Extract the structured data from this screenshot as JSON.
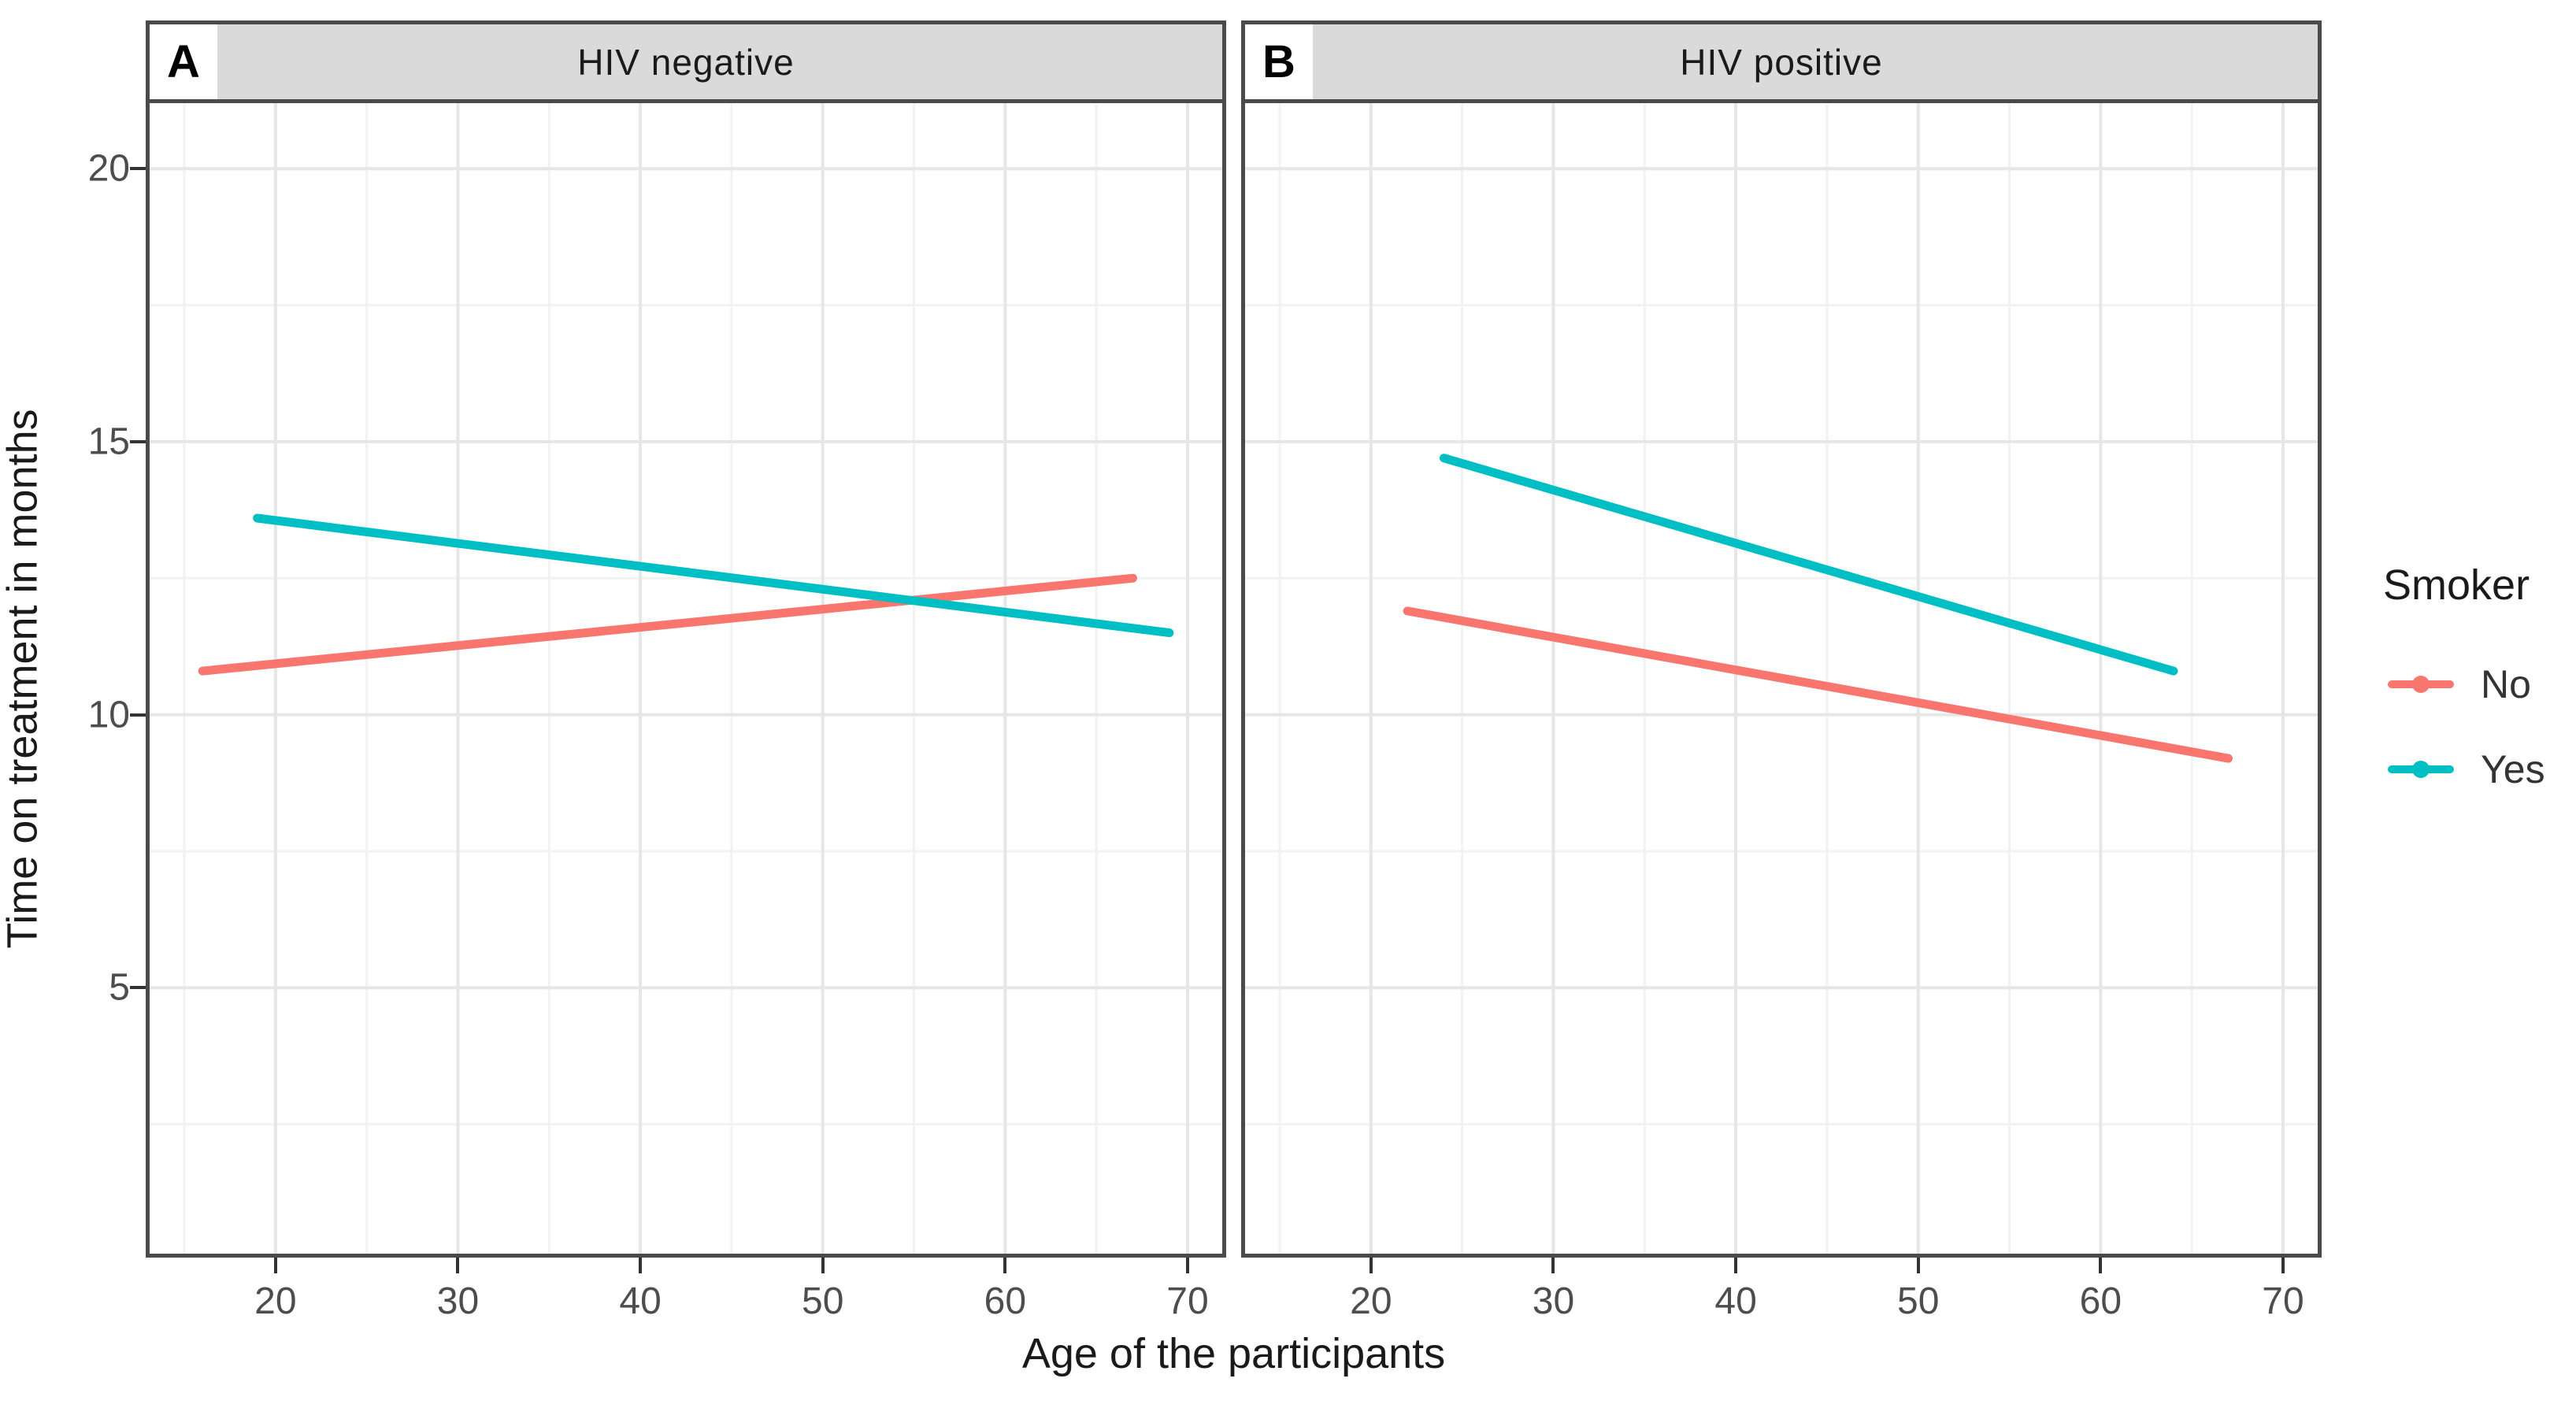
{
  "chart_data": {
    "type": "line",
    "xlabel": "Age of the participants",
    "ylabel": "Time on treatment in months",
    "x_ticks": [
      20,
      30,
      40,
      50,
      60,
      70
    ],
    "y_ticks": [
      5,
      10,
      15,
      20
    ],
    "x_minor_ticks": [
      15,
      25,
      35,
      45,
      55,
      65
    ],
    "y_minor_ticks": [
      2.5,
      7.5,
      12.5,
      17.5
    ],
    "xlim": [
      13.1,
      71.9
    ],
    "ylim": [
      0.13,
      21.2
    ],
    "grid": true,
    "legend_position": "right",
    "facets": [
      {
        "tag": "A",
        "title": "HIV negative",
        "series": [
          {
            "name": "No",
            "color": "#F8766D",
            "points": [
              [
                16,
                10.8
              ],
              [
                67,
                12.5
              ]
            ]
          },
          {
            "name": "Yes",
            "color": "#00BFC4",
            "points": [
              [
                19,
                13.6
              ],
              [
                69,
                11.5
              ]
            ]
          }
        ]
      },
      {
        "tag": "B",
        "title": "HIV positive",
        "series": [
          {
            "name": "No",
            "color": "#F8766D",
            "points": [
              [
                22,
                11.9
              ],
              [
                67,
                9.2
              ]
            ]
          },
          {
            "name": "Yes",
            "color": "#00BFC4",
            "points": [
              [
                24,
                14.7
              ],
              [
                64,
                10.8
              ]
            ]
          }
        ]
      }
    ]
  },
  "legend": {
    "title": "Smoker",
    "entries": [
      {
        "label": "No",
        "color": "#F8766D"
      },
      {
        "label": "Yes",
        "color": "#00BFC4"
      }
    ]
  },
  "colors": {
    "accent_no": "#F8766D",
    "accent_yes": "#00BFC4",
    "strip_bg": "#DADADA",
    "panel_border": "#4A4A4A",
    "grid_major": "#E6E6E6",
    "grid_minor": "#F2F2F2",
    "tick_mark": "#333333",
    "tick_label": "#4D4D4D",
    "axis_title": "#1A1A1A"
  }
}
